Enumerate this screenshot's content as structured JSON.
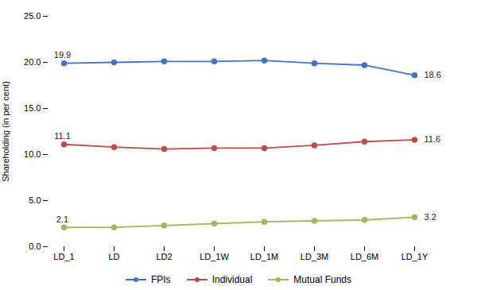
{
  "chart_data": {
    "type": "line",
    "categories": [
      "LD_1",
      "LD",
      "LD2",
      "LD_1W",
      "LD_1M",
      "LD_3M",
      "LD_6M",
      "LD_1Y"
    ],
    "series": [
      {
        "name": "FPIs",
        "color": "#4472C4",
        "values": [
          19.9,
          20.0,
          20.1,
          20.1,
          20.2,
          19.9,
          19.7,
          18.6
        ]
      },
      {
        "name": "Individual",
        "color": "#BE4B48",
        "values": [
          11.1,
          10.8,
          10.6,
          10.7,
          10.7,
          11.0,
          11.4,
          11.6
        ]
      },
      {
        "name": "Mutual Funds",
        "color": "#9BBB59",
        "values": [
          2.1,
          2.1,
          2.3,
          2.5,
          2.7,
          2.8,
          2.9,
          3.2
        ]
      }
    ],
    "ylabel": "Shareholding (in per cent)",
    "ylim": [
      0.0,
      25.0
    ],
    "yticks": [
      {
        "value": 0,
        "label": "0.0"
      },
      {
        "value": 5,
        "label": "5.0"
      },
      {
        "value": 10,
        "label": "10.0"
      },
      {
        "value": 15,
        "label": "15.0"
      },
      {
        "value": 20,
        "label": "20.0"
      },
      {
        "value": 25,
        "label": "25.0"
      }
    ],
    "annotations": [
      {
        "text": "19.9",
        "x": "LD_1",
        "y": 19.9
      },
      {
        "text": "11.1",
        "x": "LD_1",
        "y": 11.1
      },
      {
        "text": "2.1",
        "x": "LD_1",
        "y": 2.1
      },
      {
        "text": "18.6",
        "x": "LD_1Y",
        "y": 18.6
      },
      {
        "text": "11.6",
        "x": "LD_1Y",
        "y": 11.6
      },
      {
        "text": "3.2",
        "x": "LD_1Y",
        "y": 3.2
      }
    ],
    "marker": "circle",
    "grid": false,
    "legend": "bottom"
  }
}
